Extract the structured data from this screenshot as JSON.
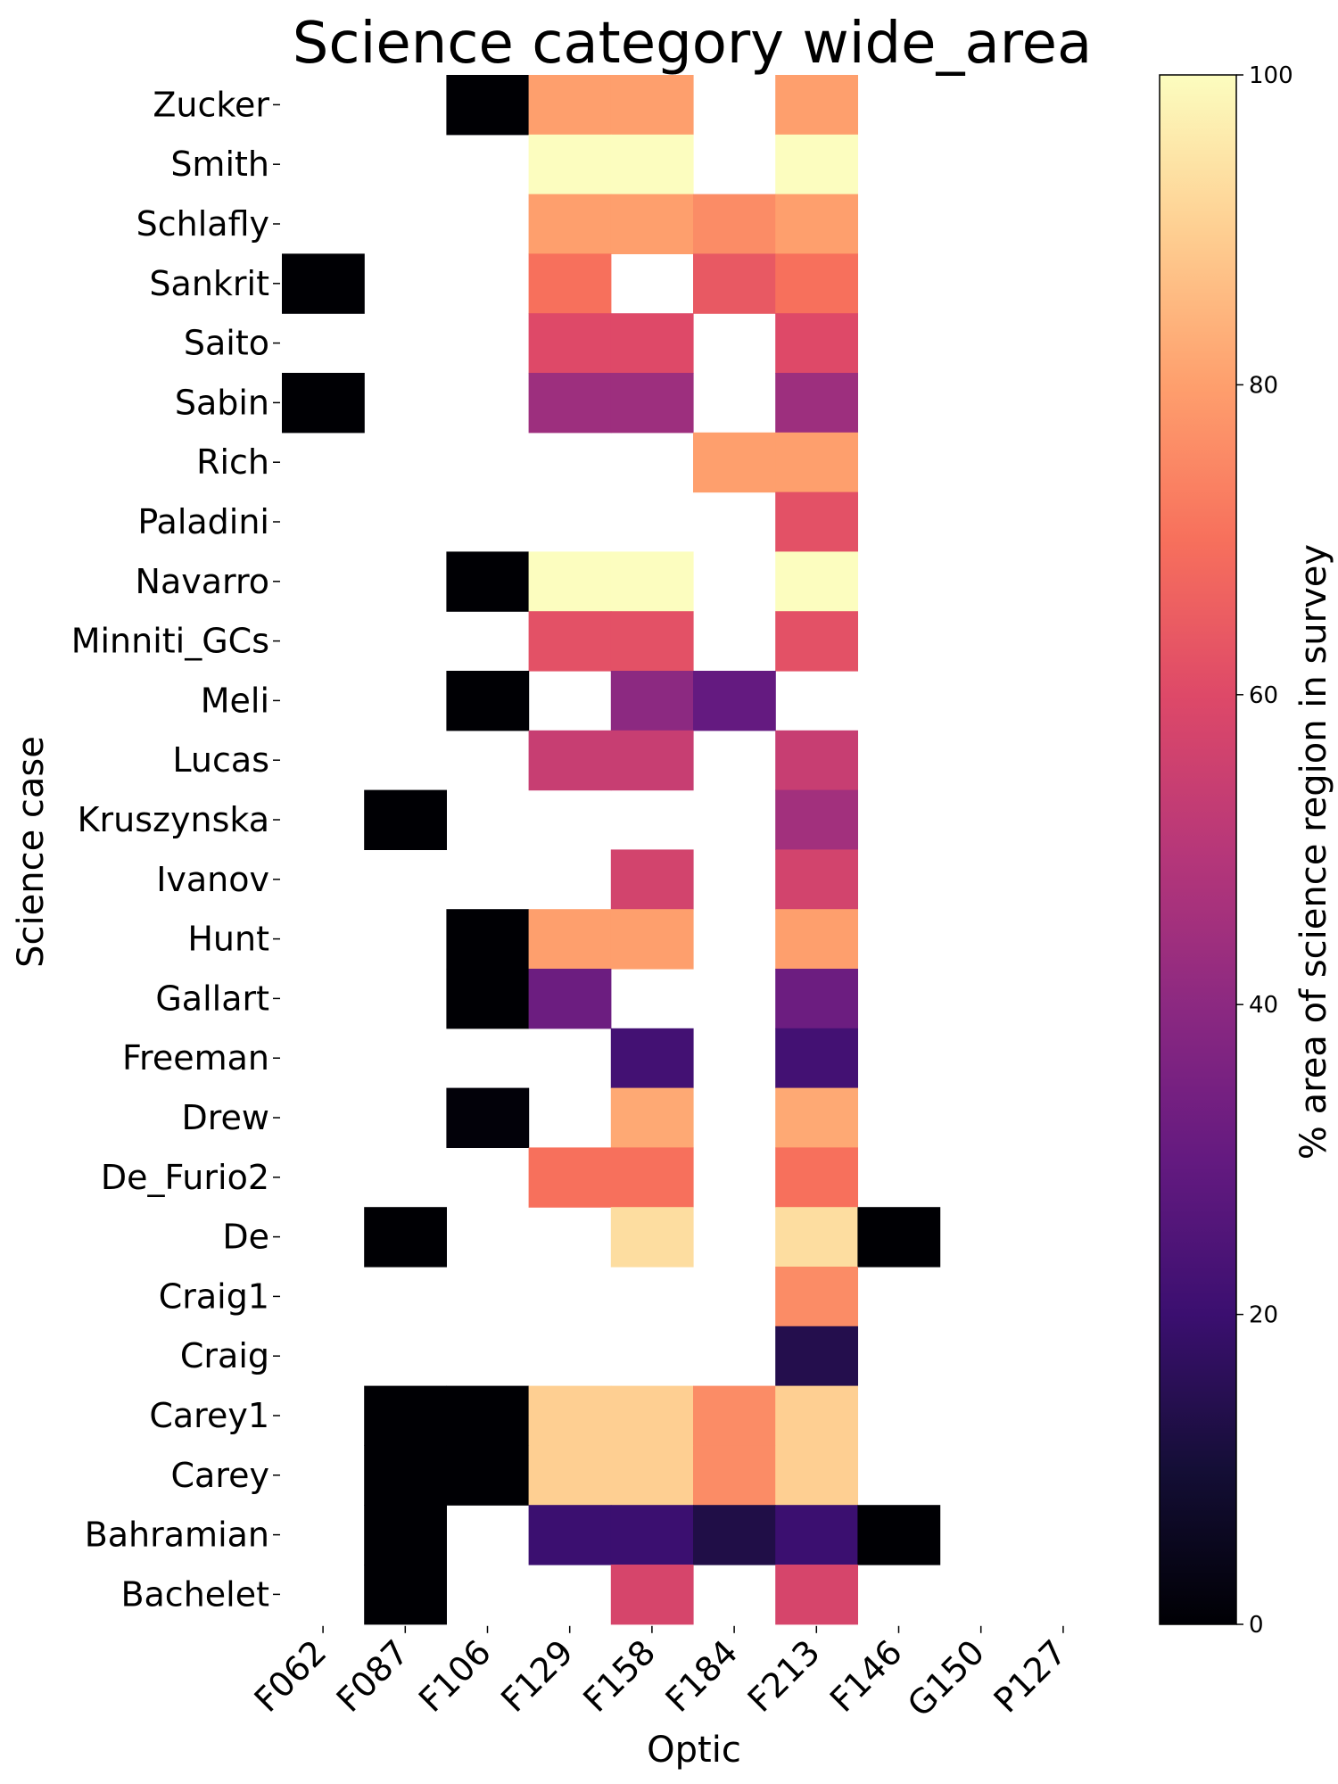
{
  "chart_data": {
    "type": "heatmap",
    "title": "Science category wide_area",
    "xlabel": "Optic",
    "ylabel": "Science case",
    "x_categories": [
      "F062",
      "F087",
      "F106",
      "F129",
      "F158",
      "F184",
      "F213",
      "F146",
      "G150",
      "P127"
    ],
    "y_categories": [
      "Zucker",
      "Smith",
      "Schlafly",
      "Sankrit",
      "Saito",
      "Sabin",
      "Rich",
      "Paladini",
      "Navarro",
      "Minniti_GCs",
      "Meli",
      "Lucas",
      "Kruszynska",
      "Ivanov",
      "Hunt",
      "Gallart",
      "Freeman",
      "Drew",
      "De_Furio2",
      "De",
      "Craig1",
      "Craig",
      "Carey1",
      "Carey",
      "Bahramian",
      "Bachelet"
    ],
    "values": [
      [
        null,
        null,
        0,
        80,
        80,
        null,
        80,
        null,
        null,
        null
      ],
      [
        null,
        null,
        null,
        100,
        100,
        null,
        100,
        null,
        null,
        null
      ],
      [
        null,
        null,
        null,
        80,
        80,
        76,
        80,
        null,
        null,
        null
      ],
      [
        0,
        null,
        null,
        70,
        null,
        64,
        70,
        null,
        null,
        null
      ],
      [
        null,
        null,
        null,
        60,
        60,
        null,
        60,
        null,
        null,
        null
      ],
      [
        0,
        null,
        null,
        44,
        44,
        null,
        44,
        null,
        null,
        null
      ],
      [
        null,
        null,
        null,
        null,
        null,
        80,
        80,
        null,
        null,
        null
      ],
      [
        null,
        null,
        null,
        null,
        null,
        null,
        62,
        null,
        null,
        null
      ],
      [
        null,
        null,
        0,
        100,
        100,
        null,
        100,
        null,
        null,
        null
      ],
      [
        null,
        null,
        null,
        62,
        62,
        null,
        62,
        null,
        null,
        null
      ],
      [
        null,
        null,
        0,
        null,
        40,
        30,
        null,
        null,
        null,
        null
      ],
      [
        null,
        null,
        null,
        54,
        54,
        null,
        54,
        null,
        null,
        null
      ],
      [
        null,
        0,
        null,
        null,
        null,
        null,
        45,
        null,
        null,
        null
      ],
      [
        null,
        null,
        null,
        null,
        57,
        null,
        57,
        null,
        null,
        null
      ],
      [
        null,
        null,
        0,
        80,
        80,
        null,
        80,
        null,
        null,
        null
      ],
      [
        null,
        null,
        0,
        32,
        null,
        null,
        32,
        null,
        null,
        null
      ],
      [
        null,
        null,
        null,
        null,
        22,
        null,
        22,
        null,
        null,
        null
      ],
      [
        null,
        null,
        1,
        null,
        82,
        null,
        82,
        null,
        null,
        null
      ],
      [
        null,
        null,
        null,
        70,
        70,
        null,
        70,
        null,
        null,
        null
      ],
      [
        null,
        0,
        null,
        null,
        93,
        null,
        93,
        0,
        null,
        null
      ],
      [
        null,
        null,
        null,
        null,
        null,
        null,
        76,
        null,
        null,
        null
      ],
      [
        null,
        null,
        null,
        null,
        null,
        null,
        14,
        null,
        null,
        null
      ],
      [
        null,
        0,
        0,
        90,
        90,
        76,
        90,
        null,
        null,
        null
      ],
      [
        null,
        0,
        0,
        90,
        90,
        76,
        90,
        null,
        null,
        null
      ],
      [
        null,
        0,
        null,
        20,
        20,
        13,
        20,
        0,
        null,
        null
      ],
      [
        null,
        0,
        null,
        null,
        58,
        null,
        58,
        null,
        null,
        null
      ]
    ],
    "colormap": "magma",
    "vmin": 0,
    "vmax": 100,
    "colorbar": {
      "label": "% area of science region in survey",
      "ticks": [
        "0",
        "20",
        "40",
        "60",
        "80",
        "100"
      ]
    }
  }
}
